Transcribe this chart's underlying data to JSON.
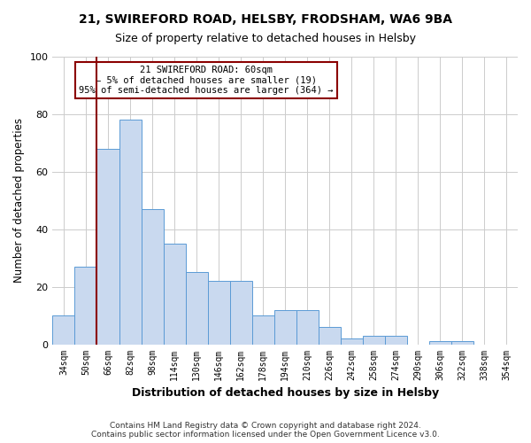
{
  "title1": "21, SWIREFORD ROAD, HELSBY, FRODSHAM, WA6 9BA",
  "title2": "Size of property relative to detached houses in Helsby",
  "xlabel": "Distribution of detached houses by size in Helsby",
  "ylabel": "Number of detached properties",
  "bar_values": [
    10,
    27,
    68,
    78,
    47,
    35,
    25,
    22,
    22,
    10,
    12,
    12,
    6,
    2,
    3,
    3,
    0,
    1,
    1,
    0,
    0
  ],
  "bar_labels": [
    "34sqm",
    "50sqm",
    "66sqm",
    "82sqm",
    "98sqm",
    "114sqm",
    "130sqm",
    "146sqm",
    "162sqm",
    "178sqm",
    "194sqm",
    "210sqm",
    "226sqm",
    "242sqm",
    "258sqm",
    "274sqm",
    "290sqm",
    "306sqm",
    "322sqm",
    "338sqm",
    "354sqm"
  ],
  "bar_color": "#c9d9ef",
  "bar_edge_color": "#5b9bd5",
  "grid_color": "#cccccc",
  "vline_color": "darkred",
  "annotation_line1": "21 SWIREFORD ROAD: 60sqm",
  "annotation_line2": "← 5% of detached houses are smaller (19)",
  "annotation_line3": "95% of semi-detached houses are larger (364) →",
  "annotation_box_color": "white",
  "annotation_box_edge": "darkred",
  "ylim": [
    0,
    100
  ],
  "footnote": "Contains HM Land Registry data © Crown copyright and database right 2024.\nContains public sector information licensed under the Open Government Licence v3.0.",
  "bar_width": 1.0,
  "vline_x": 1.5
}
